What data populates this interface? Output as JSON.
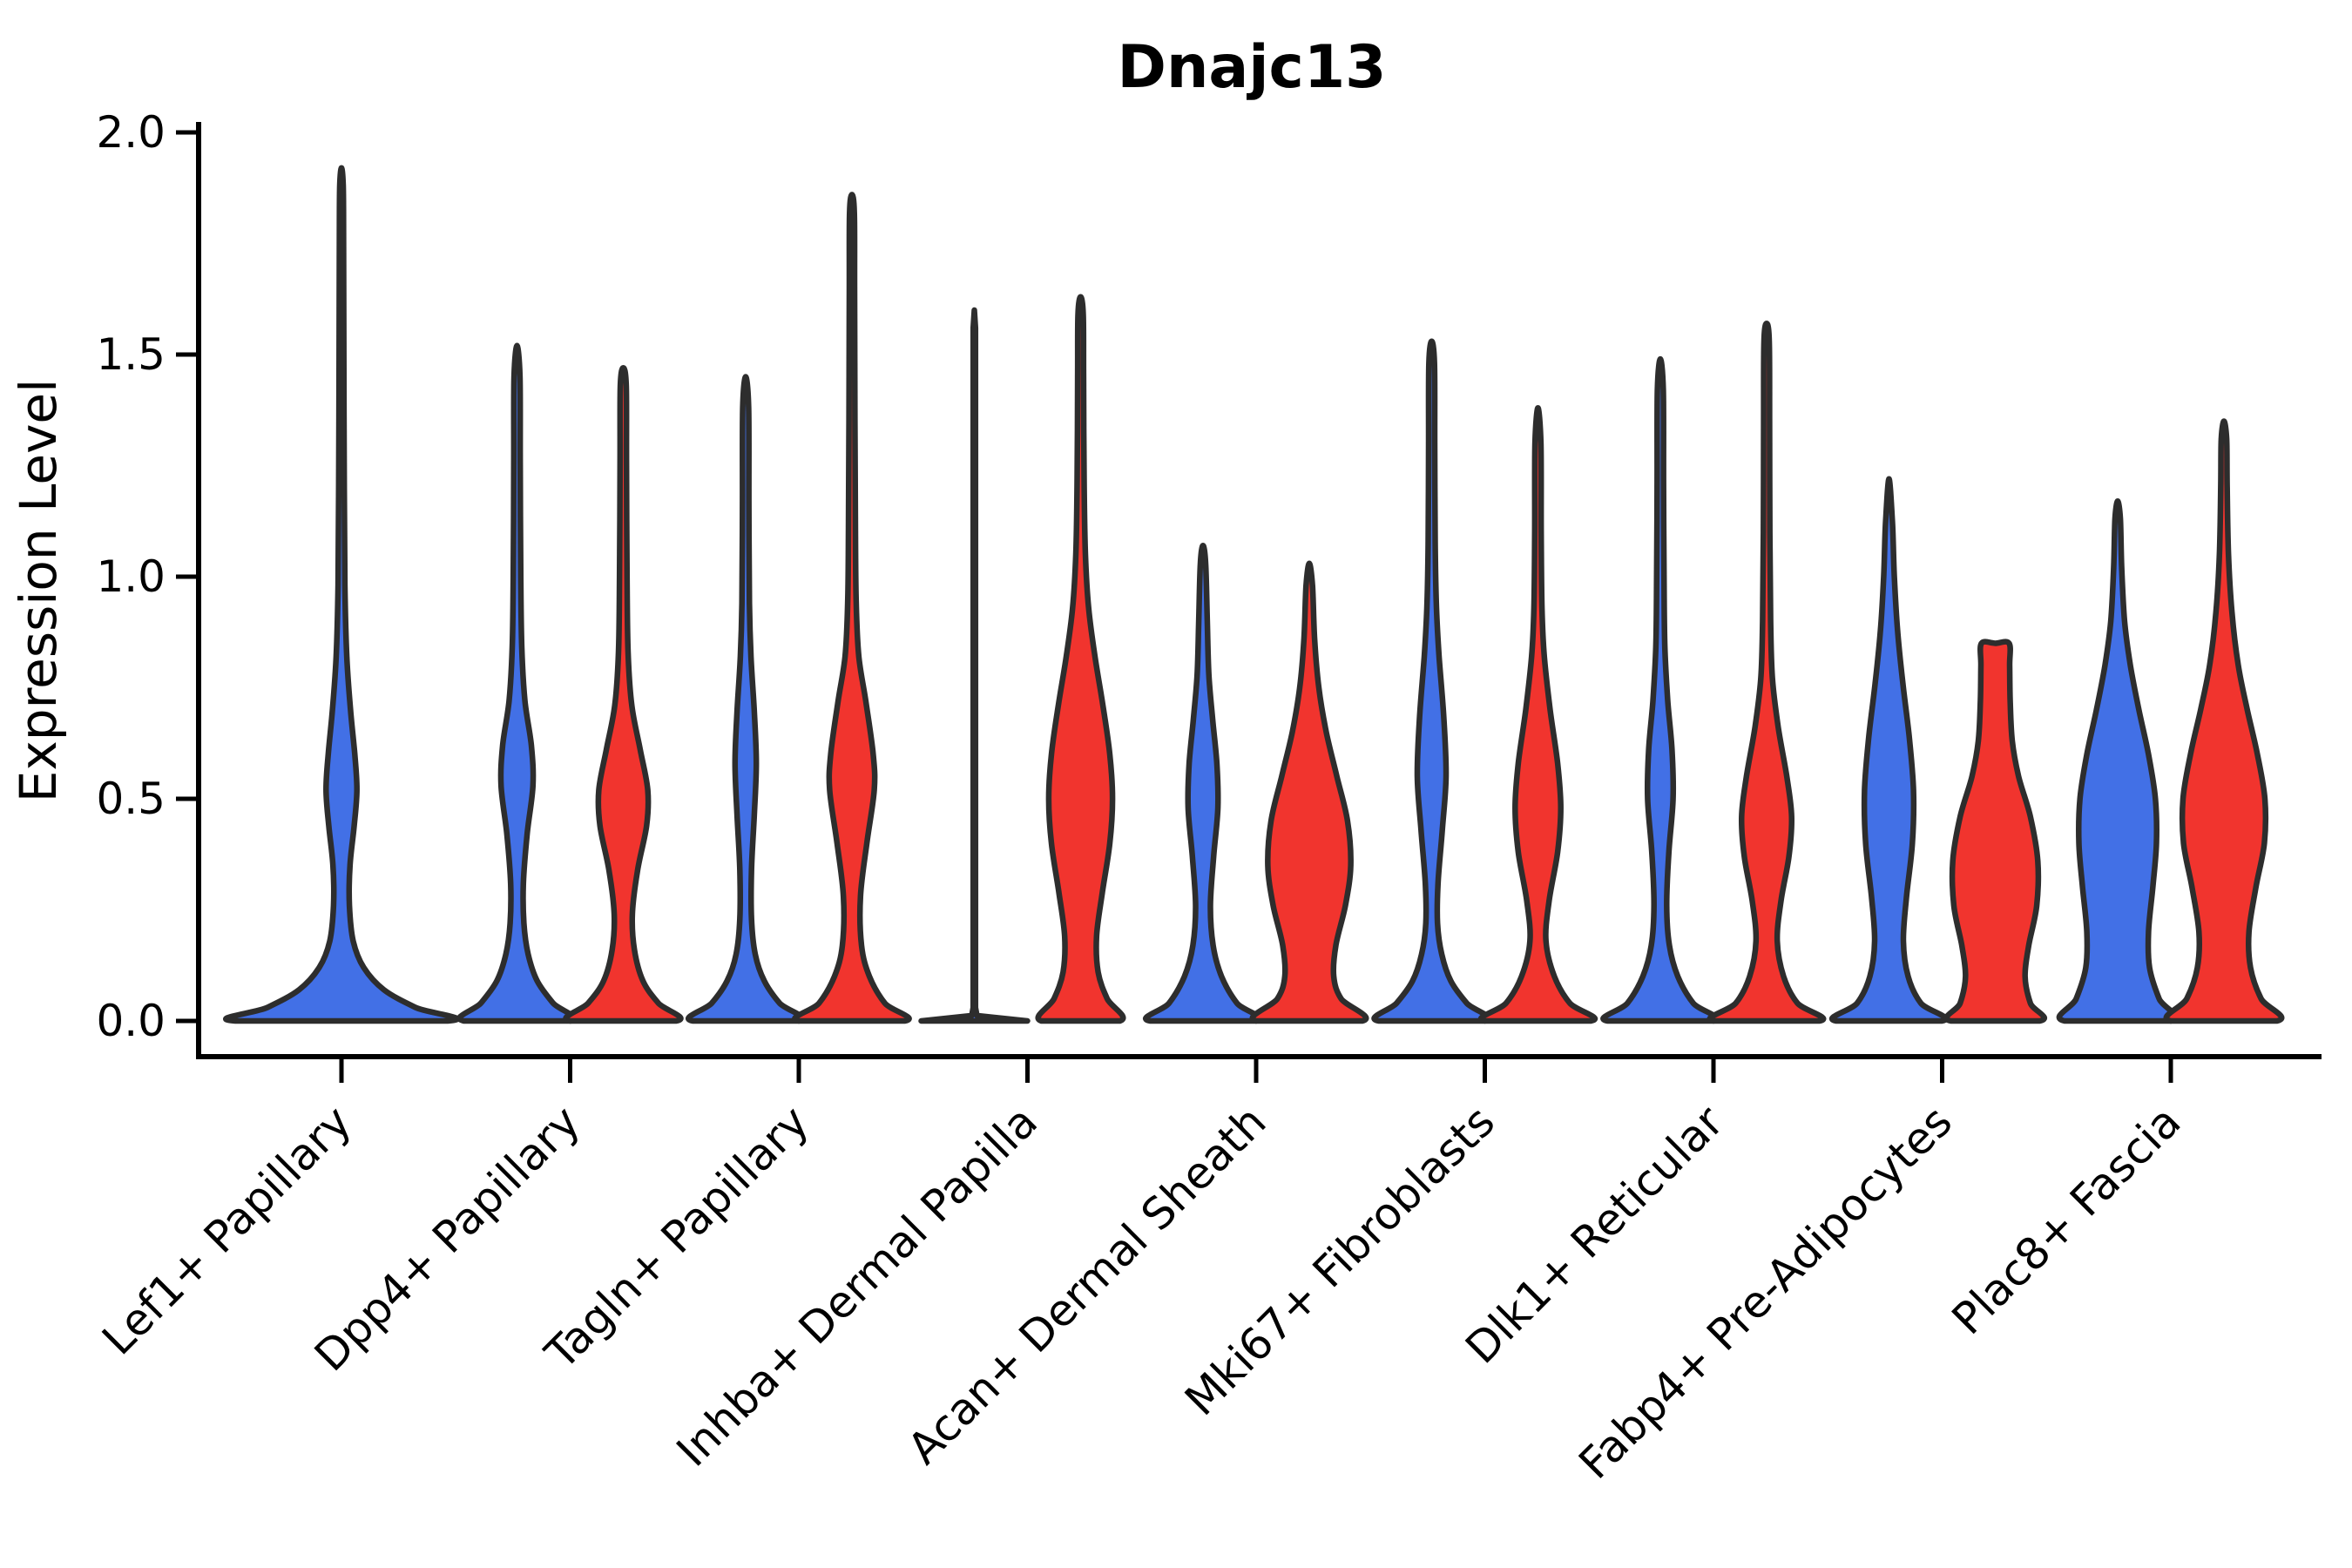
{
  "chart_data": {
    "type": "violin",
    "title": "Dnajc13",
    "xlabel": "",
    "ylabel": "Expression Level",
    "ylim": [
      0.0,
      2.0
    ],
    "yticks": [
      0.0,
      0.5,
      1.0,
      1.5,
      2.0
    ],
    "ytick_labels": [
      "0.0",
      "0.5",
      "1.0",
      "1.5",
      "2.0"
    ],
    "grid": false,
    "legend": "none",
    "background_color": "#ffffff",
    "edge_color": "#2d2d2d",
    "axis_color": "#000000",
    "x_label_rotation_deg": 45,
    "categories": [
      "Lef1+ Papillary",
      "Dpp4+ Papillary",
      "Tagln+ Papillary",
      "Inhba+ Dermal Papilla",
      "Acan+ Dermal Sheath",
      "Mki67+ Fibroblasts",
      "Dlk1+ Reticular",
      "Fabp4+ Pre-Adipocytes",
      "Plac8+ Fascia"
    ],
    "series": [
      {
        "name": "condition-blue",
        "color": "#4270E6"
      },
      {
        "name": "condition-red",
        "color": "#F1342E"
      }
    ],
    "violins": [
      {
        "category_index": 0,
        "category": "Lef1+ Papillary",
        "series": "condition-blue",
        "placement": "center",
        "peak_value": 1.92,
        "shape": "smooth",
        "profile": [
          [
            0,
            1.0
          ],
          [
            0.03,
            0.7
          ],
          [
            0.07,
            0.4
          ],
          [
            0.12,
            0.21
          ],
          [
            0.18,
            0.11
          ],
          [
            0.26,
            0.075
          ],
          [
            0.35,
            0.08
          ],
          [
            0.44,
            0.12
          ],
          [
            0.52,
            0.145
          ],
          [
            0.6,
            0.125
          ],
          [
            0.7,
            0.085
          ],
          [
            0.82,
            0.05
          ],
          [
            0.98,
            0.032
          ],
          [
            1.2,
            0.026
          ],
          [
            1.5,
            0.022
          ],
          [
            1.75,
            0.02
          ],
          [
            1.88,
            0.016
          ],
          [
            1.92,
            0
          ]
        ]
      },
      {
        "category_index": 1,
        "category": "Dpp4+ Papillary",
        "series": "condition-blue",
        "placement": "left",
        "peak_value": 1.52,
        "shape": "smooth",
        "profile": [
          [
            0,
            1.0
          ],
          [
            0.04,
            0.68
          ],
          [
            0.09,
            0.38
          ],
          [
            0.15,
            0.21
          ],
          [
            0.22,
            0.13
          ],
          [
            0.31,
            0.12
          ],
          [
            0.42,
            0.19
          ],
          [
            0.53,
            0.3
          ],
          [
            0.62,
            0.27
          ],
          [
            0.72,
            0.15
          ],
          [
            0.84,
            0.09
          ],
          [
            1.0,
            0.07
          ],
          [
            1.25,
            0.06
          ],
          [
            1.45,
            0.055
          ],
          [
            1.52,
            0
          ]
        ]
      },
      {
        "category_index": 1,
        "category": "Dpp4+ Papillary",
        "series": "condition-red",
        "placement": "right",
        "peak_value": 1.47,
        "shape": "smooth",
        "profile": [
          [
            0,
            1.0
          ],
          [
            0.04,
            0.66
          ],
          [
            0.09,
            0.37
          ],
          [
            0.16,
            0.21
          ],
          [
            0.24,
            0.17
          ],
          [
            0.34,
            0.27
          ],
          [
            0.44,
            0.44
          ],
          [
            0.52,
            0.46
          ],
          [
            0.61,
            0.32
          ],
          [
            0.71,
            0.16
          ],
          [
            0.83,
            0.09
          ],
          [
            1.0,
            0.07
          ],
          [
            1.25,
            0.06
          ],
          [
            1.43,
            0.055
          ],
          [
            1.47,
            0
          ]
        ]
      },
      {
        "category_index": 2,
        "category": "Tagln+ Papillary",
        "series": "condition-blue",
        "placement": "left",
        "peak_value": 1.45,
        "shape": "smooth",
        "profile": [
          [
            0,
            1.0
          ],
          [
            0.04,
            0.64
          ],
          [
            0.09,
            0.35
          ],
          [
            0.15,
            0.18
          ],
          [
            0.23,
            0.11
          ],
          [
            0.34,
            0.11
          ],
          [
            0.46,
            0.16
          ],
          [
            0.58,
            0.2
          ],
          [
            0.7,
            0.16
          ],
          [
            0.82,
            0.1
          ],
          [
            0.94,
            0.07
          ],
          [
            1.15,
            0.06
          ],
          [
            1.38,
            0.055
          ],
          [
            1.45,
            0
          ]
        ]
      },
      {
        "category_index": 2,
        "category": "Tagln+ Papillary",
        "series": "condition-red",
        "placement": "right",
        "peak_value": 1.86,
        "shape": "smooth",
        "profile": [
          [
            0,
            1.0
          ],
          [
            0.04,
            0.62
          ],
          [
            0.1,
            0.33
          ],
          [
            0.17,
            0.18
          ],
          [
            0.28,
            0.16
          ],
          [
            0.4,
            0.28
          ],
          [
            0.52,
            0.42
          ],
          [
            0.6,
            0.4
          ],
          [
            0.72,
            0.26
          ],
          [
            0.82,
            0.13
          ],
          [
            0.94,
            0.08
          ],
          [
            1.1,
            0.065
          ],
          [
            1.35,
            0.055
          ],
          [
            1.65,
            0.05
          ],
          [
            1.82,
            0.045
          ],
          [
            1.86,
            0
          ]
        ]
      },
      {
        "category_index": 3,
        "category": "Inhba+ Dermal Papilla",
        "series": "condition-blue",
        "placement": "left",
        "peak_value": 1.6,
        "shape": "sharp",
        "profile": [
          [
            0,
            1.0
          ],
          [
            0.012,
            0.05
          ],
          [
            0.03,
            0.022
          ],
          [
            1.56,
            0.022
          ],
          [
            1.6,
            0
          ]
        ]
      },
      {
        "category_index": 3,
        "category": "Inhba+ Dermal Papilla",
        "series": "condition-red",
        "placement": "right",
        "peak_value": 1.63,
        "shape": "smooth",
        "profile": [
          [
            0,
            0.74
          ],
          [
            0.05,
            0.5
          ],
          [
            0.11,
            0.33
          ],
          [
            0.19,
            0.3
          ],
          [
            0.29,
            0.41
          ],
          [
            0.4,
            0.55
          ],
          [
            0.5,
            0.6
          ],
          [
            0.6,
            0.55
          ],
          [
            0.71,
            0.42
          ],
          [
            0.82,
            0.27
          ],
          [
            0.93,
            0.15
          ],
          [
            1.05,
            0.09
          ],
          [
            1.22,
            0.065
          ],
          [
            1.45,
            0.055
          ],
          [
            1.59,
            0.05
          ],
          [
            1.63,
            0
          ]
        ]
      },
      {
        "category_index": 4,
        "category": "Acan+ Dermal Sheath",
        "series": "condition-blue",
        "placement": "left",
        "peak_value": 1.07,
        "shape": "smooth",
        "profile": [
          [
            0,
            1.0
          ],
          [
            0.04,
            0.64
          ],
          [
            0.1,
            0.35
          ],
          [
            0.17,
            0.19
          ],
          [
            0.26,
            0.14
          ],
          [
            0.37,
            0.2
          ],
          [
            0.48,
            0.28
          ],
          [
            0.58,
            0.26
          ],
          [
            0.68,
            0.18
          ],
          [
            0.78,
            0.11
          ],
          [
            0.9,
            0.08
          ],
          [
            1.03,
            0.05
          ],
          [
            1.07,
            0
          ]
        ]
      },
      {
        "category_index": 4,
        "category": "Acan+ Dermal Sheath",
        "series": "condition-red",
        "placement": "right",
        "peak_value": 1.03,
        "shape": "smooth",
        "profile": [
          [
            0,
            1.0
          ],
          [
            0.05,
            0.6
          ],
          [
            0.1,
            0.46
          ],
          [
            0.17,
            0.5
          ],
          [
            0.26,
            0.68
          ],
          [
            0.35,
            0.78
          ],
          [
            0.45,
            0.72
          ],
          [
            0.55,
            0.52
          ],
          [
            0.65,
            0.32
          ],
          [
            0.75,
            0.18
          ],
          [
            0.86,
            0.1
          ],
          [
            0.98,
            0.06
          ],
          [
            1.03,
            0
          ]
        ]
      },
      {
        "category_index": 5,
        "category": "Mki67+ Fibroblasts",
        "series": "condition-blue",
        "placement": "left",
        "peak_value": 1.53,
        "shape": "smooth",
        "profile": [
          [
            0,
            1.0
          ],
          [
            0.04,
            0.66
          ],
          [
            0.09,
            0.36
          ],
          [
            0.15,
            0.19
          ],
          [
            0.22,
            0.11
          ],
          [
            0.31,
            0.12
          ],
          [
            0.43,
            0.2
          ],
          [
            0.55,
            0.27
          ],
          [
            0.68,
            0.23
          ],
          [
            0.82,
            0.14
          ],
          [
            0.93,
            0.09
          ],
          [
            1.08,
            0.065
          ],
          [
            1.3,
            0.058
          ],
          [
            1.48,
            0.052
          ],
          [
            1.53,
            0
          ]
        ]
      },
      {
        "category_index": 5,
        "category": "Mki67+ Fibroblasts",
        "series": "condition-red",
        "placement": "right",
        "peak_value": 1.38,
        "shape": "smooth",
        "profile": [
          [
            0,
            1.0
          ],
          [
            0.04,
            0.6
          ],
          [
            0.1,
            0.31
          ],
          [
            0.18,
            0.15
          ],
          [
            0.27,
            0.21
          ],
          [
            0.38,
            0.37
          ],
          [
            0.48,
            0.43
          ],
          [
            0.58,
            0.37
          ],
          [
            0.7,
            0.23
          ],
          [
            0.82,
            0.12
          ],
          [
            0.93,
            0.075
          ],
          [
            1.1,
            0.06
          ],
          [
            1.3,
            0.055
          ],
          [
            1.38,
            0
          ]
        ]
      },
      {
        "category_index": 6,
        "category": "Dlk1+ Reticular",
        "series": "condition-blue",
        "placement": "left",
        "peak_value": 1.49,
        "shape": "smooth",
        "profile": [
          [
            0,
            1.0
          ],
          [
            0.04,
            0.62
          ],
          [
            0.1,
            0.33
          ],
          [
            0.17,
            0.17
          ],
          [
            0.26,
            0.12
          ],
          [
            0.38,
            0.16
          ],
          [
            0.5,
            0.24
          ],
          [
            0.61,
            0.22
          ],
          [
            0.72,
            0.14
          ],
          [
            0.84,
            0.085
          ],
          [
            0.98,
            0.07
          ],
          [
            1.2,
            0.06
          ],
          [
            1.42,
            0.055
          ],
          [
            1.49,
            0
          ]
        ]
      },
      {
        "category_index": 6,
        "category": "Dlk1+ Reticular",
        "series": "condition-red",
        "placement": "right",
        "peak_value": 1.57,
        "shape": "smooth",
        "profile": [
          [
            0,
            1.0
          ],
          [
            0.04,
            0.58
          ],
          [
            0.1,
            0.32
          ],
          [
            0.18,
            0.2
          ],
          [
            0.27,
            0.27
          ],
          [
            0.37,
            0.42
          ],
          [
            0.46,
            0.47
          ],
          [
            0.55,
            0.38
          ],
          [
            0.66,
            0.22
          ],
          [
            0.77,
            0.11
          ],
          [
            0.9,
            0.075
          ],
          [
            1.1,
            0.06
          ],
          [
            1.35,
            0.055
          ],
          [
            1.53,
            0.05
          ],
          [
            1.57,
            0
          ]
        ]
      },
      {
        "category_index": 7,
        "category": "Fabp4+ Pre-Adipocytes",
        "series": "condition-blue",
        "placement": "left",
        "peak_value": 1.22,
        "shape": "smooth",
        "profile": [
          [
            0,
            1.0
          ],
          [
            0.04,
            0.6
          ],
          [
            0.1,
            0.36
          ],
          [
            0.18,
            0.27
          ],
          [
            0.28,
            0.33
          ],
          [
            0.4,
            0.44
          ],
          [
            0.52,
            0.46
          ],
          [
            0.64,
            0.38
          ],
          [
            0.76,
            0.26
          ],
          [
            0.88,
            0.16
          ],
          [
            1.0,
            0.1
          ],
          [
            1.12,
            0.065
          ],
          [
            1.22,
            0
          ]
        ]
      },
      {
        "category_index": 7,
        "category": "Fabp4+ Pre-Adipocytes",
        "series": "condition-red",
        "placement": "right",
        "peak_value": 0.85,
        "shape": "smooth",
        "flat_top": true,
        "profile": [
          [
            0,
            0.84
          ],
          [
            0.04,
            0.66
          ],
          [
            0.1,
            0.56
          ],
          [
            0.17,
            0.63
          ],
          [
            0.26,
            0.78
          ],
          [
            0.36,
            0.8
          ],
          [
            0.46,
            0.66
          ],
          [
            0.55,
            0.44
          ],
          [
            0.63,
            0.32
          ],
          [
            0.72,
            0.28
          ],
          [
            0.8,
            0.27
          ],
          [
            0.85,
            0.26
          ],
          [
            0.85,
            0
          ]
        ]
      },
      {
        "category_index": 8,
        "category": "Plac8+ Fascia",
        "series": "condition-blue",
        "placement": "left",
        "peak_value": 1.17,
        "shape": "smooth",
        "profile": [
          [
            0,
            1.0
          ],
          [
            0.05,
            0.78
          ],
          [
            0.12,
            0.6
          ],
          [
            0.2,
            0.58
          ],
          [
            0.3,
            0.66
          ],
          [
            0.4,
            0.73
          ],
          [
            0.5,
            0.71
          ],
          [
            0.6,
            0.58
          ],
          [
            0.7,
            0.4
          ],
          [
            0.8,
            0.24
          ],
          [
            0.9,
            0.13
          ],
          [
            1.02,
            0.075
          ],
          [
            1.13,
            0.05
          ],
          [
            1.17,
            0
          ]
        ]
      },
      {
        "category_index": 8,
        "category": "Plac8+ Fascia",
        "series": "condition-red",
        "placement": "right",
        "peak_value": 1.35,
        "shape": "smooth",
        "profile": [
          [
            0,
            1.0
          ],
          [
            0.05,
            0.7
          ],
          [
            0.12,
            0.5
          ],
          [
            0.2,
            0.47
          ],
          [
            0.3,
            0.6
          ],
          [
            0.4,
            0.76
          ],
          [
            0.5,
            0.77
          ],
          [
            0.6,
            0.63
          ],
          [
            0.7,
            0.44
          ],
          [
            0.8,
            0.27
          ],
          [
            0.92,
            0.15
          ],
          [
            1.05,
            0.085
          ],
          [
            1.2,
            0.06
          ],
          [
            1.31,
            0.05
          ],
          [
            1.35,
            0
          ]
        ]
      }
    ]
  }
}
